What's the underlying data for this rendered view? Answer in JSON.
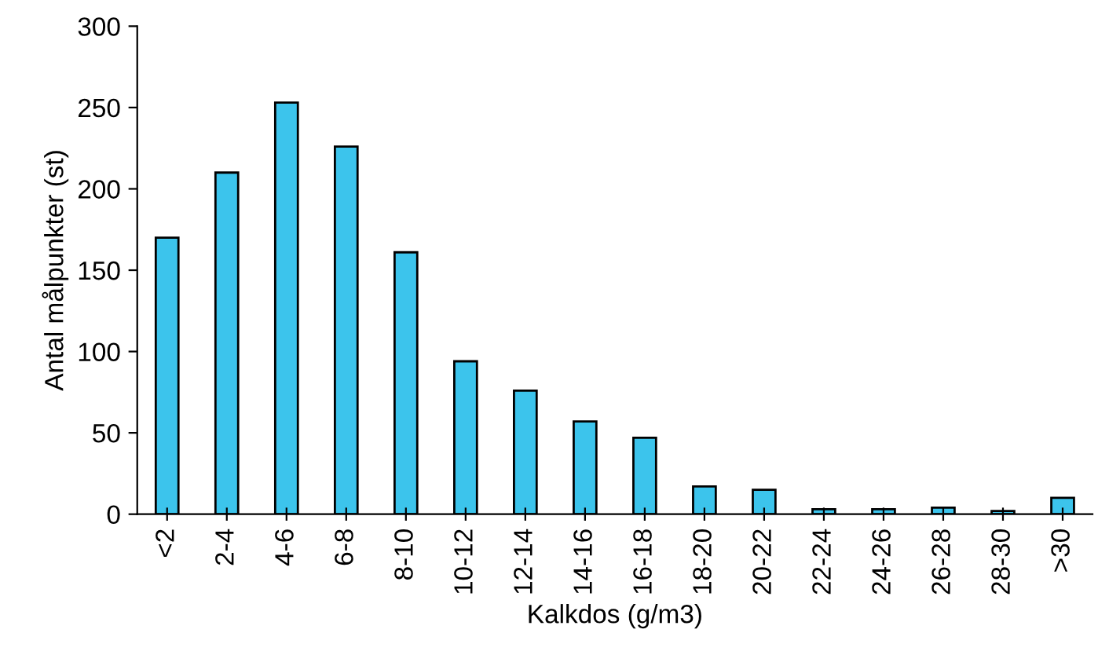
{
  "chart_data": {
    "type": "bar",
    "xlabel": "Kalkdos (g/m3)",
    "ylabel": "Antal målpunkter (st)",
    "categories": [
      "<2",
      "2-4",
      "4-6",
      "6-8",
      "8-10",
      "10-12",
      "12-14",
      "14-16",
      "16-18",
      "18-20",
      "20-22",
      "22-24",
      "24-26",
      "26-28",
      "28-30",
      ">30"
    ],
    "values": [
      170,
      210,
      253,
      226,
      161,
      94,
      76,
      57,
      47,
      17,
      15,
      3,
      3,
      4,
      2,
      10
    ],
    "color": "#3cc4ec",
    "ylim": [
      0,
      300
    ],
    "yticks": [
      0,
      50,
      100,
      150,
      200,
      250,
      300
    ],
    "grid": false
  }
}
